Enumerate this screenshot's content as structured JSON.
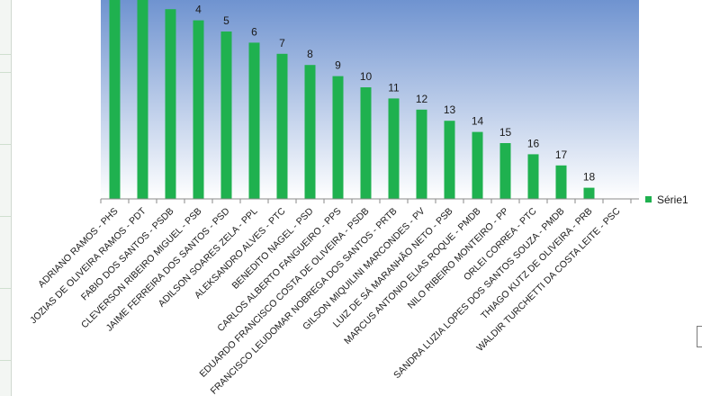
{
  "chart_data": {
    "type": "bar",
    "title": "",
    "xlabel": "",
    "ylabel": "",
    "ylim": [
      0,
      18
    ],
    "categories": [
      "ADRIANO RAMOS - PHS",
      "JOZIAS DE OLIVEIRA RAMOS - PDT",
      "FABIO DOS SANTOS - PSDB",
      "CLEVERSON RIBEIRO MIGUEL - PSB",
      "JAIME FERREIRA DOS SANTOS - PSD",
      "ADILSON SOARES ZELA - PPL",
      "ALEKSANDRO ALVES - PTC",
      "BENEDITO NAGEL - PSD",
      "CARLOS ALBERTO FANGUEIRO - PPS",
      "EDUARDO FRANCISCO COSTA DE OLIVEIRA - PSDB",
      "FRANCISCO LEUDOMAR NOBREGA DOS SANTOS - PRTB",
      "GILSON MIQUILINI MARCONDES - PV",
      "LUIZ DE SÁ MARANHÃO NETO - PSB",
      "MARCUS ANTONIO ELIAS ROQUE - PMDB",
      "NILO RIBEIRO MONTEIRO - PP",
      "ORLEI CORREA - PTC",
      "SANDRA LUZIA LOPES DOS SANTOS SOUZA - PMDB",
      "THIAGO KUTZ DE OLIVEIRA - PRB",
      "WALDIR TURCHETTI DA COSTA LEITE - PSC"
    ],
    "series": [
      {
        "name": "Série1",
        "values": [
          18,
          18,
          17,
          16,
          15,
          14,
          13,
          12,
          11,
          10,
          9,
          8,
          7,
          6,
          5,
          4,
          3,
          1,
          0
        ],
        "data_labels": [
          "",
          "",
          "",
          "4",
          "5",
          "6",
          "7",
          "8",
          "9",
          "10",
          "11",
          "12",
          "13",
          "14",
          "15",
          "16",
          "17",
          "18",
          ""
        ]
      }
    ],
    "legend": {
      "position": "right"
    },
    "grid": false,
    "colors": {
      "bar": "#1fb14f",
      "plot_top": "#6f93d0",
      "plot_bottom": "#ffffff",
      "axis": "#8a8a8a",
      "label": "#1a1a1a"
    }
  }
}
